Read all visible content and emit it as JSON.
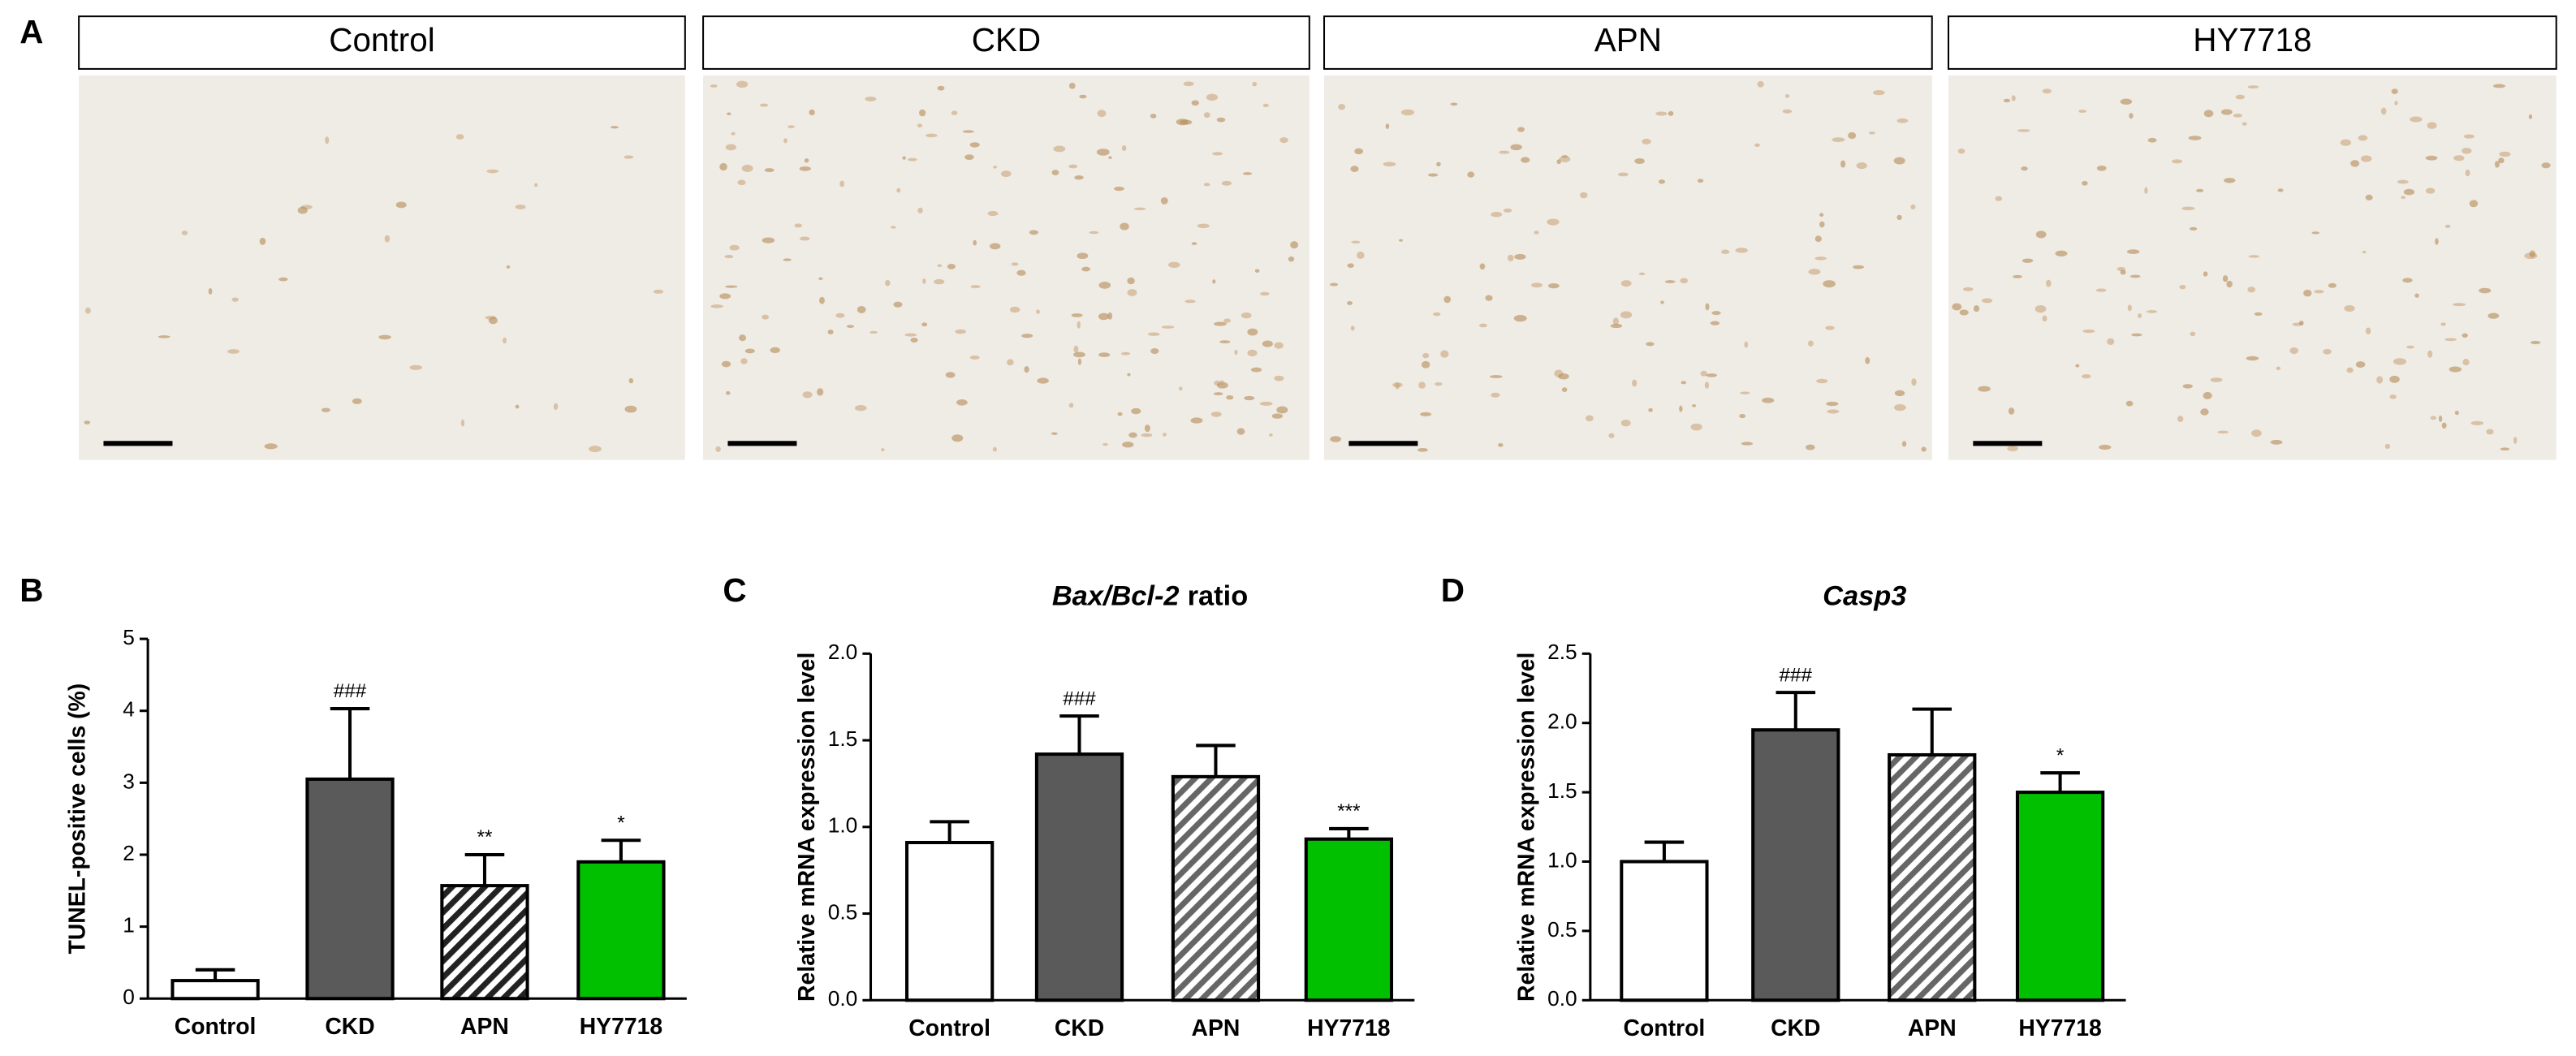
{
  "panel_a": {
    "label": "A",
    "images": [
      {
        "label": "Control"
      },
      {
        "label": "CKD"
      },
      {
        "label": "APN"
      },
      {
        "label": "HY7718"
      }
    ]
  },
  "chart_data": [
    {
      "type": "bar",
      "panel_label": "B",
      "ylabel": "TUNEL-positive cells (%)",
      "categories": [
        "Control",
        "CKD",
        "APN",
        "HY7718"
      ],
      "values": [
        0.25,
        3.05,
        1.57,
        1.9
      ],
      "errors": [
        0.15,
        0.98,
        0.43,
        0.3
      ],
      "annotations": [
        null,
        "###",
        "**",
        "*"
      ],
      "colors": [
        "#ffffff",
        "#5a5a5a",
        "#222222",
        "#00c000"
      ],
      "hatched": [
        false,
        false,
        true,
        false
      ],
      "ylim": [
        0,
        5
      ],
      "yticks": [
        0,
        1,
        2,
        3,
        4,
        5
      ]
    },
    {
      "type": "bar",
      "panel_label": "C",
      "title_parts": [
        {
          "text": "Bax/Bcl-2",
          "italic": true
        },
        {
          "text": "ratio",
          "italic": false
        }
      ],
      "ylabel": "Relative mRNA expression level",
      "categories": [
        "Control",
        "CKD",
        "APN",
        "HY7718"
      ],
      "values": [
        0.91,
        1.42,
        1.29,
        0.93
      ],
      "errors": [
        0.12,
        0.22,
        0.18,
        0.06
      ],
      "annotations": [
        null,
        "###",
        null,
        "***"
      ],
      "colors": [
        "#ffffff",
        "#5a5a5a",
        "#666666",
        "#00c000"
      ],
      "hatched": [
        false,
        false,
        true,
        false
      ],
      "ylim": [
        0,
        2
      ],
      "yticks": [
        {
          "value": 0,
          "label": "0.0"
        },
        0.5,
        {
          "value": 1,
          "label": "1.0"
        },
        1.5,
        {
          "value": 2,
          "label": "2.0"
        }
      ]
    },
    {
      "type": "bar",
      "panel_label": "D",
      "title_parts": [
        {
          "text": "Casp3",
          "italic": true
        }
      ],
      "ylabel": "Relative mRNA expression level",
      "categories": [
        "Control",
        "CKD",
        "APN",
        "HY7718"
      ],
      "values": [
        1.0,
        1.95,
        1.77,
        1.5
      ],
      "errors": [
        0.14,
        0.27,
        0.33,
        0.14
      ],
      "annotations": [
        null,
        "###",
        null,
        "*"
      ],
      "colors": [
        "#ffffff",
        "#5a5a5a",
        "#666666",
        "#00c000"
      ],
      "hatched": [
        false,
        false,
        true,
        false
      ],
      "ylim": [
        0,
        2.5
      ],
      "yticks": [
        {
          "value": 0,
          "label": "0.0"
        },
        0.5,
        {
          "value": 1,
          "label": "1.0"
        },
        1.5,
        {
          "value": 2,
          "label": "2.0"
        },
        2.5
      ]
    }
  ]
}
